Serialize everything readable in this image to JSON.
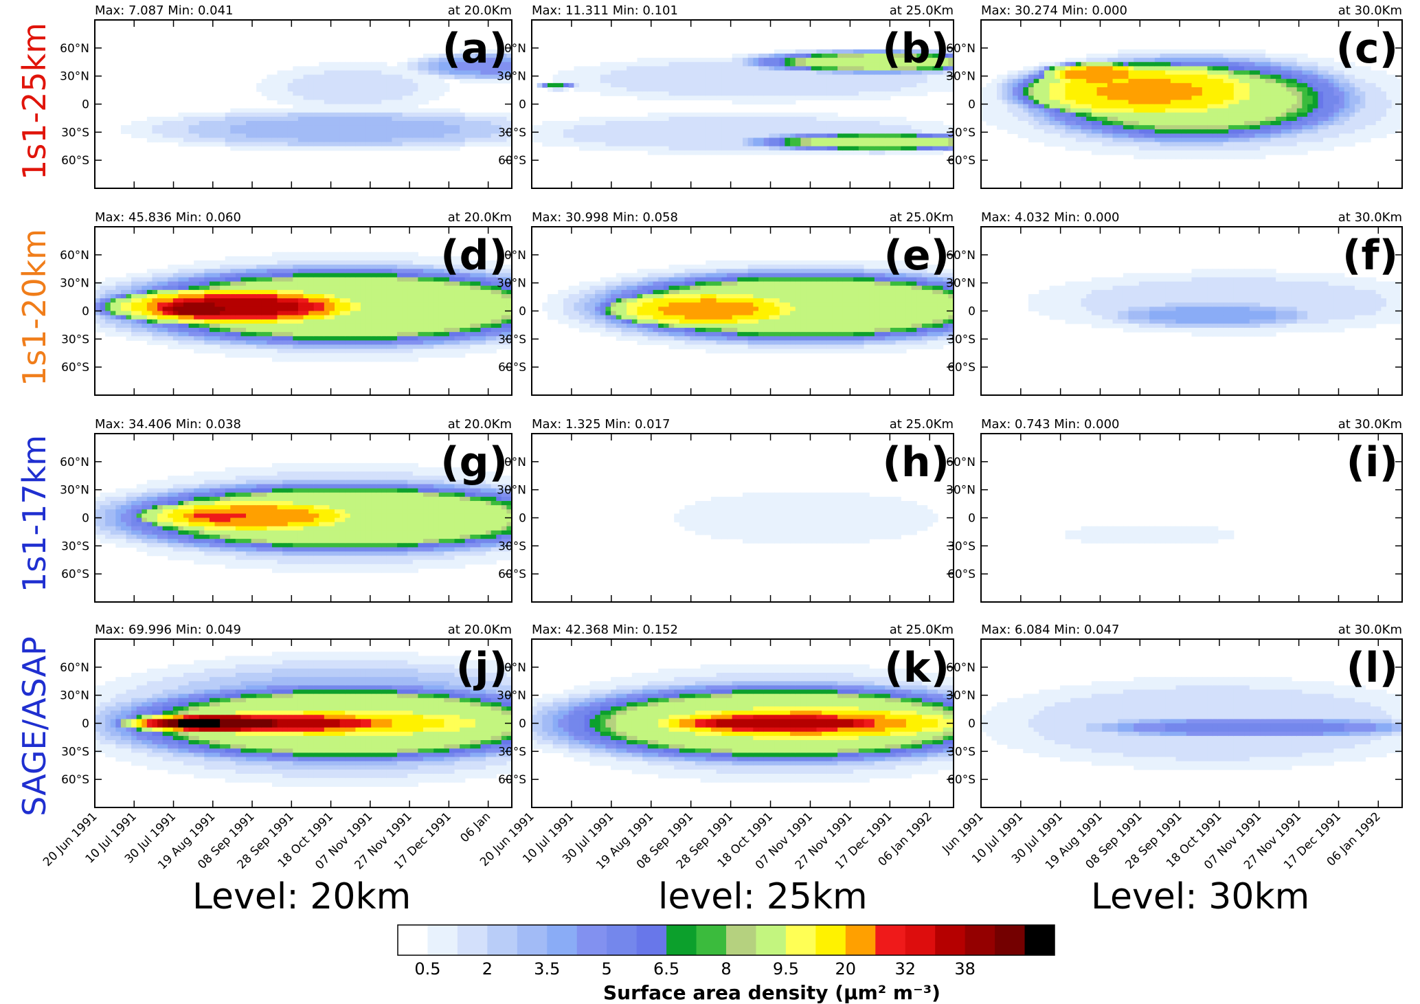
{
  "colors": {
    "levels": [
      "#ffffff",
      "#e8f2fd",
      "#d3e0fb",
      "#b9cdf8",
      "#a2bbf6",
      "#8aacf6",
      "#8291f0",
      "#7487ec",
      "#6877ea",
      "#0ca02c",
      "#3bbb3d",
      "#b5d17f",
      "#c3f57f",
      "#ffff55",
      "#fff200",
      "#ffa000",
      "#ef1a1a",
      "#dd0d0d",
      "#b50000",
      "#940000",
      "#740000",
      "#000000"
    ]
  },
  "colorbar": {
    "tick_labels": [
      "0.5",
      "2",
      "3.5",
      "5",
      "6.5",
      "8",
      "9.5",
      "20",
      "32",
      "38"
    ],
    "title": "Surface area density (μm² m⁻³)"
  },
  "row_labels": [
    {
      "text": "1s1-25km",
      "color": "#e0140a"
    },
    {
      "text": "1s1-20km",
      "color": "#f07d1a"
    },
    {
      "text": "1s1-17km",
      "color": "#1f2fd0"
    },
    {
      "text": "SAGE/ASAP",
      "color": "#1f2fd0"
    }
  ],
  "column_levels": [
    "Level: 20km",
    "level: 25km",
    "Level: 30km"
  ],
  "chart_data": [
    {
      "type": "heatmap",
      "panel": "(a)",
      "stats": "Max: 7.087 Min: 0.041",
      "altitude": "at 20.0Km",
      "blobs": [
        [
          7.5,
          0.62,
          0.2,
          0.22,
          0.28,
          1.5
        ],
        [
          7.3,
          0.6,
          -0.3,
          0.45,
          0.22,
          3.2
        ],
        [
          6.9,
          0.95,
          0.45,
          0.18,
          0.15,
          4.5
        ]
      ]
    },
    {
      "type": "heatmap",
      "panel": "(b)",
      "stats": "Max: 11.311 Min: 0.101",
      "altitude": "at 25.0Km",
      "blobs": [
        [
          7.5,
          0.55,
          0.3,
          0.45,
          0.25,
          2
        ],
        [
          7.6,
          0.5,
          -0.35,
          0.5,
          0.22,
          2
        ],
        [
          7.2,
          0.82,
          0.5,
          0.28,
          0.12,
          11
        ],
        [
          7.2,
          0.82,
          -0.45,
          0.28,
          0.1,
          11
        ],
        [
          0.7,
          0.06,
          0.22,
          0.04,
          0.04,
          7.5
        ]
      ]
    },
    {
      "type": "heatmap",
      "panel": "(c)",
      "stats": "Max: 30.274 Min: 0.000",
      "altitude": "at 30.0Km",
      "blobs": [
        [
          6.5,
          0.52,
          0,
          0.45,
          0.55,
          3
        ],
        [
          6.6,
          0.5,
          0.05,
          0.35,
          0.45,
          12
        ],
        [
          6.6,
          0.4,
          0.15,
          0.27,
          0.3,
          27
        ],
        [
          6.6,
          0.28,
          0.35,
          0.12,
          0.12,
          31
        ]
      ]
    },
    {
      "type": "heatmap",
      "panel": "(d)",
      "stats": "Max: 45.836 Min: 0.060",
      "altitude": "at 20.0Km",
      "blobs": [
        [
          6.8,
          0.6,
          0.05,
          0.52,
          0.55,
          3
        ],
        [
          6.9,
          0.6,
          0.05,
          0.5,
          0.42,
          14
        ],
        [
          6.2,
          0.35,
          0.05,
          0.28,
          0.2,
          40
        ],
        [
          6.4,
          0.25,
          0.02,
          0.12,
          0.12,
          46
        ]
      ]
    },
    {
      "type": "heatmap",
      "panel": "(e)",
      "stats": "Max: 30.998 Min: 0.058",
      "altitude": "at 25.0Km",
      "blobs": [
        [
          6.8,
          0.65,
          0.05,
          0.5,
          0.48,
          3
        ],
        [
          6.8,
          0.65,
          0.05,
          0.45,
          0.38,
          14
        ],
        [
          6.3,
          0.42,
          0.02,
          0.22,
          0.2,
          28
        ],
        [
          5.4,
          0.4,
          0.02,
          0.05,
          0.05,
          31
        ]
      ]
    },
    {
      "type": "heatmap",
      "panel": "(f)",
      "stats": "Max: 4.032 Min: 0.000",
      "altitude": "at 30.0Km",
      "blobs": [
        [
          7,
          0.6,
          0.1,
          0.45,
          0.35,
          1.8
        ],
        [
          7.2,
          0.55,
          -0.05,
          0.25,
          0.15,
          4
        ]
      ]
    },
    {
      "type": "heatmap",
      "panel": "(g)",
      "stats": "Max: 34.406 Min: 0.038",
      "altitude": "at 20.0Km",
      "blobs": [
        [
          6.8,
          0.6,
          0.0,
          0.52,
          0.55,
          3
        ],
        [
          6.8,
          0.6,
          0.0,
          0.5,
          0.38,
          14
        ],
        [
          6.4,
          0.38,
          0.02,
          0.25,
          0.18,
          30
        ],
        [
          6.3,
          0.3,
          0.02,
          0.12,
          0.1,
          34
        ]
      ]
    },
    {
      "type": "heatmap",
      "panel": "(h)",
      "stats": "Max: 1.325 Min: 0.017",
      "altitude": "at 25.0Km",
      "blobs": [
        [
          7,
          0.65,
          0.0,
          0.35,
          0.35,
          0.9
        ]
      ]
    },
    {
      "type": "heatmap",
      "panel": "(i)",
      "stats": "Max: 0.743 Min: 0.000",
      "altitude": "at 30.0Km",
      "blobs": [
        [
          7,
          0.4,
          -0.2,
          0.3,
          0.18,
          0.6
        ]
      ]
    },
    {
      "type": "heatmap",
      "panel": "(j)",
      "stats": "Max: 69.996 Min: 0.049",
      "altitude": "at 20.0Km",
      "blobs": [
        [
          6.9,
          0.6,
          0.05,
          0.55,
          0.65,
          4
        ],
        [
          6.9,
          0.6,
          0.0,
          0.5,
          0.42,
          14
        ],
        [
          6.5,
          0.55,
          0.0,
          0.42,
          0.18,
          25
        ],
        [
          6.4,
          0.45,
          0.0,
          0.32,
          0.12,
          40
        ],
        [
          6.3,
          0.3,
          0.0,
          0.2,
          0.1,
          55
        ],
        [
          6.5,
          0.25,
          0.0,
          0.08,
          0.08,
          70
        ]
      ]
    },
    {
      "type": "heatmap",
      "panel": "(k)",
      "stats": "Max: 42.368 Min: 0.152",
      "altitude": "at 25.0Km",
      "blobs": [
        [
          6.9,
          0.6,
          0.0,
          0.52,
          0.6,
          3
        ],
        [
          6.9,
          0.6,
          0.0,
          0.5,
          0.42,
          14
        ],
        [
          6.6,
          0.65,
          0.0,
          0.38,
          0.2,
          30
        ],
        [
          6.5,
          0.6,
          0.0,
          0.3,
          0.12,
          42
        ]
      ]
    },
    {
      "type": "heatmap",
      "panel": "(l)",
      "stats": "Max: 6.084 Min: 0.047",
      "altitude": "at 30.0Km",
      "blobs": [
        [
          7.2,
          0.55,
          0.0,
          0.5,
          0.5,
          2
        ],
        [
          7.2,
          0.65,
          -0.05,
          0.4,
          0.12,
          5.5
        ]
      ]
    }
  ],
  "axes": {
    "y_ticks": [
      "60°N",
      "30°N",
      "0",
      "30°S",
      "60°S"
    ],
    "x_ticks_a": [
      "20 Jun 1991",
      "10 Jul 1991",
      "30 Jul 1991",
      "19 Aug 1991",
      "08 Sep 1991",
      "28 Sep 1991",
      "18 Oct 1991",
      "07 Nov 1991",
      "27 Nov 1991",
      "17 Dec 1991",
      "06 Jan"
    ],
    "x_ticks_b": [
      "20 Jun 1991",
      "10 Jul 1991",
      "30 Jul 1991",
      "19 Aug 1991",
      "08 Sep 1991",
      "28 Sep 1991",
      "18 Oct 1991",
      "07 Nov 1991",
      "27 Nov 1991",
      "17 Dec 1991",
      "06 Jan 1992"
    ],
    "x_ticks_c": [
      "Jun 1991",
      "10 Jul 1991",
      "30 Jul 1991",
      "19 Aug 1991",
      "08 Sep 1991",
      "28 Sep 1991",
      "18 Oct 1991",
      "07 Nov 1991",
      "27 Nov 1991",
      "17 Dec 1991",
      "06 Jan 1992"
    ]
  }
}
